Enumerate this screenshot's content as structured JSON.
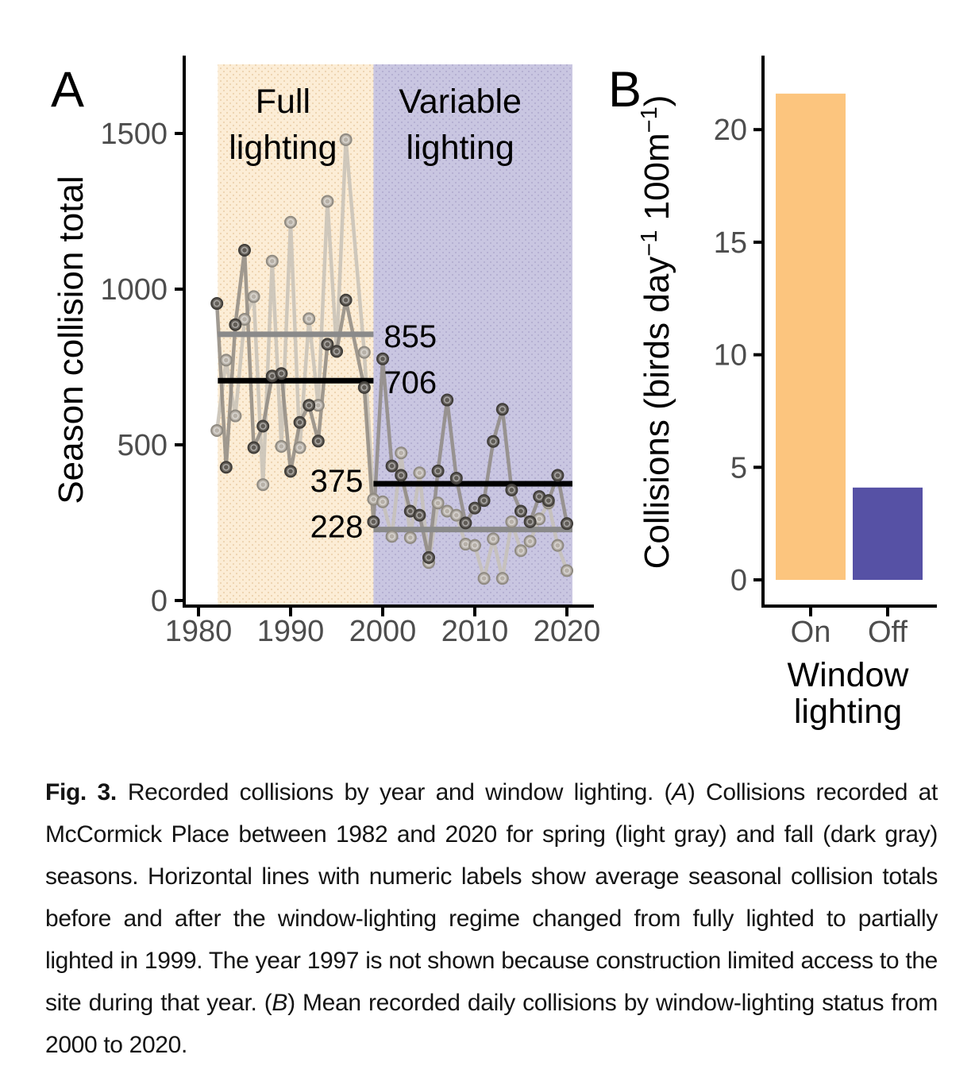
{
  "panelA": {
    "label": "A",
    "y_title": "Season collision total"
  },
  "panelB": {
    "label": "B"
  },
  "caption": {
    "fig_label": "Fig. 3.",
    "part1": "Recorded collisions by year and window lighting. (",
    "panel_a_ref": "A",
    "part2": ") Collisions recorded at McCormick Place between 1982 and 2020 for spring (light gray) and fall (dark gray) seasons. Horizontal lines with numeric labels show average seasonal collision totals before and after the window-lighting regime changed from fully lighted to partially lighted in 1999. The year 1997 is not shown because construction limited access to the site during that year. (",
    "panel_b_ref": "B",
    "part3": ") Mean recorded daily collisions by window-lighting status from 2000 to 2020."
  },
  "chart_data": [
    {
      "panel": "A",
      "type": "line",
      "title": "",
      "xlabel": "",
      "ylabel": "Season collision total",
      "x_ticks": [
        1980,
        1990,
        2000,
        2010,
        2020
      ],
      "y_ticks": [
        0,
        500,
        1000,
        1500
      ],
      "ylim": [
        0,
        1700
      ],
      "xlim": [
        1978.5,
        2023
      ],
      "grid": false,
      "note": "Yearly values estimated from plotted point positions; year 1997 absent",
      "x": [
        1982,
        1983,
        1984,
        1985,
        1986,
        1987,
        1988,
        1989,
        1990,
        1991,
        1992,
        1993,
        1994,
        1995,
        1996,
        1998,
        1999,
        2000,
        2001,
        2002,
        2003,
        2004,
        2005,
        2006,
        2007,
        2008,
        2009,
        2010,
        2011,
        2012,
        2013,
        2014,
        2015,
        2016,
        2017,
        2018,
        2019,
        2020
      ],
      "series": [
        {
          "name": "spring",
          "legend": "spring (light gray)",
          "line_color": "#c7c1b7",
          "point_fill": "#b5afa6",
          "point_stroke": "#8f8a81",
          "values": [
            546,
            772,
            593,
            903,
            976,
            372,
            1090,
            495,
            1215,
            491,
            905,
            627,
            1282,
            801,
            1480,
            797,
            325,
            317,
            206,
            474,
            202,
            410,
            122,
            313,
            287,
            274,
            181,
            177,
            71,
            198,
            71,
            253,
            160,
            190,
            262,
            313,
            177,
            96
          ]
        },
        {
          "name": "fall",
          "legend": "fall (dark gray)",
          "line_color": "#8f8a83",
          "point_fill": "#5c5852",
          "point_stroke": "#3f3c38",
          "values": [
            954,
            428,
            886,
            1125,
            491,
            560,
            721,
            729,
            415,
            572,
            627,
            512,
            823,
            800,
            965,
            684,
            253,
            776,
            432,
            402,
            287,
            274,
            138,
            416,
            644,
            393,
            249,
            297,
            321,
            511,
            614,
            355,
            287,
            253,
            334,
            321,
            402,
            247
          ]
        }
      ],
      "regions": [
        {
          "name": "full-lighting",
          "label_lines": [
            "Full",
            "lighting"
          ],
          "x_start": 1982.1,
          "x_end": 1999,
          "color": "#fcedd6",
          "dot_color": "#ecd2ae"
        },
        {
          "name": "variable-lighting",
          "label_lines": [
            "Variable",
            "lighting"
          ],
          "x_start": 1999,
          "x_end": 2020.6,
          "color": "#c9c6e1",
          "dot_color": "#b3aed1"
        }
      ],
      "mean_lines": [
        {
          "label": "855",
          "value": 855,
          "series": "spring",
          "period": "pre",
          "color": "#8a8a8a"
        },
        {
          "label": "706",
          "value": 706,
          "series": "fall",
          "period": "pre",
          "color": "#000000"
        },
        {
          "label": "375",
          "value": 375,
          "series": "fall",
          "period": "post",
          "color": "#000000"
        },
        {
          "label": "228",
          "value": 228,
          "series": "spring",
          "period": "post",
          "color": "#8a8a8a"
        }
      ]
    },
    {
      "panel": "B",
      "type": "bar",
      "title": "",
      "categories": [
        "On",
        "Off"
      ],
      "values": [
        21.6,
        4.1
      ],
      "colors": [
        "#fcc57e",
        "#5651a5"
      ],
      "xlabel_lines": [
        "Window",
        "lighting"
      ],
      "ylabel_parts": [
        {
          "t": "Collisions (birds day"
        },
        {
          "t": "−1",
          "sup": true
        },
        {
          "t": " 100m"
        },
        {
          "t": "−1",
          "sup": true
        },
        {
          "t": ")"
        }
      ],
      "y_ticks": [
        0,
        5,
        10,
        15,
        20
      ],
      "ylim": [
        0,
        22
      ],
      "grid": false
    }
  ]
}
